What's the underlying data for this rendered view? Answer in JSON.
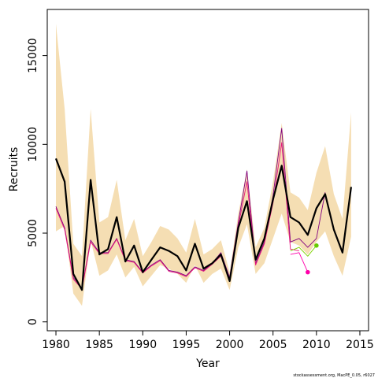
{
  "chart_data": {
    "type": "line",
    "title": "",
    "xlabel": "Year",
    "ylabel": "Recruits",
    "xlim": [
      1979,
      2016
    ],
    "ylim": [
      -500,
      17600
    ],
    "xticks": [
      1980,
      1985,
      1990,
      1995,
      2000,
      2005,
      2010,
      2015
    ],
    "yticks": [
      0,
      5000,
      10000,
      15000
    ],
    "grid": false,
    "legend": "none",
    "footnote": "stockassessment.org, MacPE_0.05, r6027",
    "band": {
      "color": "#f5deb3",
      "x": [
        1980,
        1981,
        1982,
        1983,
        1984,
        1985,
        1986,
        1987,
        1988,
        1989,
        1990,
        1991,
        1992,
        1993,
        1994,
        1995,
        1996,
        1997,
        1998,
        1999,
        2000,
        2001,
        2002,
        2003,
        2004,
        2005,
        2006,
        2007,
        2008,
        2009,
        2010,
        2011,
        2012,
        2013,
        2014
      ],
      "upper": [
        16800,
        12000,
        4400,
        3700,
        12000,
        5600,
        5900,
        8000,
        4600,
        5800,
        3700,
        4500,
        5400,
        5200,
        4700,
        3900,
        5800,
        3800,
        4100,
        4600,
        2800,
        6100,
        8600,
        4200,
        5300,
        7900,
        11200,
        7300,
        7000,
        6300,
        8400,
        9900,
        7200,
        5800,
        11800
      ],
      "lower": [
        5100,
        5400,
        1600,
        900,
        4600,
        2600,
        2900,
        3800,
        2500,
        3100,
        2000,
        2600,
        3200,
        3000,
        2700,
        2200,
        3200,
        2200,
        2700,
        3000,
        1800,
        4200,
        5500,
        2700,
        3300,
        4700,
        6100,
        4500,
        4300,
        3800,
        4500,
        5100,
        3700,
        2600,
        4800
      ]
    },
    "series": [
      {
        "color": "#000000",
        "x": [
          1980,
          1981,
          1982,
          1983,
          1984,
          1985,
          1986,
          1987,
          1988,
          1989,
          1990,
          1991,
          1992,
          1993,
          1994,
          1995,
          1996,
          1997,
          1998,
          1999,
          2000,
          2001,
          2002,
          2003,
          2004,
          2005,
          2006,
          2007,
          2008,
          2009,
          2010,
          2011,
          2012,
          2013,
          2014
        ],
        "values": [
          9200,
          7900,
          2700,
          1800,
          8000,
          3800,
          4100,
          5900,
          3400,
          4300,
          2800,
          3500,
          4200,
          4000,
          3700,
          2900,
          4400,
          3000,
          3300,
          3800,
          2300,
          5300,
          6800,
          3500,
          4700,
          6900,
          8800,
          5900,
          5600,
          4900,
          6400,
          7200,
          5200,
          3900,
          7600
        ]
      },
      {
        "color": "#800080",
        "x": [
          1980,
          1981,
          1982,
          1983,
          1984,
          1985,
          1986,
          1987,
          1988,
          1989,
          1990,
          1991,
          1992,
          1993,
          1994,
          1995,
          1996,
          1997,
          1998,
          1999,
          2000,
          2001,
          2002,
          2003,
          2004,
          2005,
          2006,
          2007,
          2008,
          2009,
          2010,
          2011
        ],
        "values": [
          6500,
          5300,
          2500,
          1900,
          4600,
          3900,
          3900,
          4700,
          3500,
          3400,
          2800,
          3200,
          3500,
          2900,
          2800,
          2600,
          3100,
          2900,
          3300,
          3900,
          2500,
          5600,
          8500,
          3300,
          4500,
          7100,
          10900,
          4500,
          4700,
          4200,
          4700,
          7300
        ]
      },
      {
        "color": "#e8177a",
        "x": [
          1980,
          1981,
          1982,
          1983,
          1984,
          1985,
          1986,
          1987,
          1988,
          1989,
          1990,
          1991,
          1992,
          1993,
          1994,
          1995,
          1996,
          1997,
          1998,
          1999,
          2000,
          2001,
          2002,
          2003,
          2004,
          2005,
          2006,
          2007,
          2008
        ],
        "values": [
          6400,
          5200,
          2400,
          1850,
          4500,
          3850,
          3850,
          4650,
          3450,
          3350,
          2750,
          3150,
          3450,
          2850,
          2750,
          2550,
          3050,
          2850,
          3250,
          3700,
          2400,
          5400,
          7900,
          3200,
          4400,
          6700,
          10100,
          4100,
          4000
        ]
      },
      {
        "color": "#ff00aa",
        "x": [
          2007,
          2008,
          2009
        ],
        "values": [
          3800,
          3900,
          2800
        ]
      },
      {
        "color": "#7cd300",
        "x": [
          2007,
          2008,
          2009,
          2010
        ],
        "values": [
          4000,
          4200,
          3700,
          4300
        ]
      }
    ],
    "points": [
      {
        "color": "#ff00aa",
        "x": 2009,
        "y": 2800
      },
      {
        "color": "#66cc00",
        "x": 2010,
        "y": 4300
      }
    ]
  }
}
